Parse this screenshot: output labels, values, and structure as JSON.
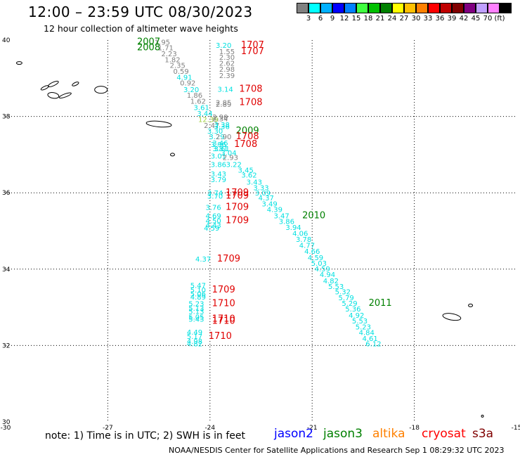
{
  "header": {
    "title": "12:00 – 23:59 UTC 08/30/2023",
    "subtitle": "12 hour collection of altimeter wave heights"
  },
  "legend": {
    "colors": [
      "#808080",
      "#00ffff",
      "#00b0ff",
      "#0000ff",
      "#0080ff",
      "#40ff40",
      "#00c000",
      "#008000",
      "#ffff00",
      "#ffc000",
      "#ff8000",
      "#ff0000",
      "#c00000",
      "#800000",
      "#800080",
      "#c0a0ff",
      "#ff80ff",
      "#000000"
    ],
    "tick_labels": [
      "3",
      "6",
      "9",
      "12",
      "15",
      "18",
      "21",
      "24",
      "27",
      "30",
      "33",
      "36",
      "39",
      "42",
      "45",
      "70",
      "(ft)"
    ]
  },
  "axes": {
    "lon_labels": [
      "-30",
      "-27",
      "-24",
      "-21",
      "-18",
      "-15"
    ],
    "lat_labels": [
      "40",
      "38",
      "36",
      "34",
      "32",
      "30"
    ],
    "lon_range": [
      -30,
      -15
    ],
    "lat_range": [
      30,
      40
    ]
  },
  "colors": {
    "jason2": "#0000ff",
    "jason3": "#008000",
    "altika": "#ff8000",
    "cryosat": "#ff0000",
    "s3a": "#800000",
    "gray": "#808080",
    "cyan": "#00e0e0",
    "green": "#008000",
    "red": "#e00000",
    "yellowgreen": "#a0d040"
  },
  "observations": [
    {
      "v": "1.95",
      "lon": -25.4,
      "lat": 39.88,
      "c": "gray"
    },
    {
      "v": "1.71",
      "lon": -25.3,
      "lat": 39.73,
      "c": "gray"
    },
    {
      "v": "2.23",
      "lon": -25.2,
      "lat": 39.58,
      "c": "gray"
    },
    {
      "v": "1.82",
      "lon": -25.1,
      "lat": 39.42,
      "c": "gray"
    },
    {
      "v": "2.35",
      "lon": -24.95,
      "lat": 39.27,
      "c": "gray"
    },
    {
      "v": "0.59",
      "lon": -24.85,
      "lat": 39.12,
      "c": "gray"
    },
    {
      "v": "4.91",
      "lon": -24.75,
      "lat": 38.96,
      "c": "cyan"
    },
    {
      "v": "0.92",
      "lon": -24.65,
      "lat": 38.81,
      "c": "gray"
    },
    {
      "v": "3.20",
      "lon": -24.55,
      "lat": 38.64,
      "c": "cyan"
    },
    {
      "v": "1.86",
      "lon": -24.45,
      "lat": 38.49,
      "c": "gray"
    },
    {
      "v": "1.62",
      "lon": -24.35,
      "lat": 38.33,
      "c": "gray"
    },
    {
      "v": "3.61",
      "lon": -24.25,
      "lat": 38.17,
      "c": "cyan"
    },
    {
      "v": "3.44",
      "lon": -24.15,
      "lat": 38.01,
      "c": "cyan"
    },
    {
      "v": "12.39",
      "lon": -24.05,
      "lat": 37.85,
      "c": "yellowgreen"
    },
    {
      "v": "2.47",
      "lon": -23.95,
      "lat": 37.7,
      "c": "gray"
    },
    {
      "v": "3.30",
      "lon": -23.85,
      "lat": 37.55,
      "c": "cyan"
    },
    {
      "v": "3.29",
      "lon": -23.8,
      "lat": 37.4,
      "c": "cyan"
    },
    {
      "v": "3.46",
      "lon": -23.7,
      "lat": 37.24,
      "c": "cyan"
    },
    {
      "v": "3.61",
      "lon": -23.65,
      "lat": 37.09,
      "c": "cyan"
    },
    {
      "v": "3.04",
      "lon": -23.45,
      "lat": 36.98,
      "c": "cyan"
    },
    {
      "v": "3.01",
      "lon": -23.75,
      "lat": 36.9,
      "c": "cyan"
    },
    {
      "v": "2.93",
      "lon": -23.4,
      "lat": 36.86,
      "c": "gray"
    },
    {
      "v": "3.86",
      "lon": -23.75,
      "lat": 36.68,
      "c": "cyan"
    },
    {
      "v": "3.22",
      "lon": -23.3,
      "lat": 36.68,
      "c": "cyan"
    },
    {
      "v": "3.45",
      "lon": -22.95,
      "lat": 36.53,
      "c": "cyan"
    },
    {
      "v": "3.43",
      "lon": -23.75,
      "lat": 36.43,
      "c": "cyan"
    },
    {
      "v": "3.62",
      "lon": -22.85,
      "lat": 36.4,
      "c": "cyan"
    },
    {
      "v": "3.79",
      "lon": -23.75,
      "lat": 36.28,
      "c": "cyan"
    },
    {
      "v": "3.43",
      "lon": -22.7,
      "lat": 36.22,
      "c": "cyan"
    },
    {
      "v": "3.33",
      "lon": -22.5,
      "lat": 36.07,
      "c": "cyan"
    },
    {
      "v": "3.74",
      "lon": -23.85,
      "lat": 35.93,
      "c": "cyan"
    },
    {
      "v": "3.09",
      "lon": -22.45,
      "lat": 35.93,
      "c": "cyan"
    },
    {
      "v": "3.70",
      "lon": -23.85,
      "lat": 35.85,
      "c": "cyan"
    },
    {
      "v": "4.37",
      "lon": -22.35,
      "lat": 35.8,
      "c": "cyan"
    },
    {
      "v": "3.49",
      "lon": -22.25,
      "lat": 35.64,
      "c": "cyan"
    },
    {
      "v": "3.76",
      "lon": -23.9,
      "lat": 35.55,
      "c": "cyan"
    },
    {
      "v": "4.39",
      "lon": -22.1,
      "lat": 35.5,
      "c": "cyan"
    },
    {
      "v": "3.47",
      "lon": -21.9,
      "lat": 35.33,
      "c": "cyan"
    },
    {
      "v": "4.69",
      "lon": -23.9,
      "lat": 35.33,
      "c": "cyan"
    },
    {
      "v": "4.50",
      "lon": -23.9,
      "lat": 35.2,
      "c": "cyan"
    },
    {
      "v": "3.86",
      "lon": -21.75,
      "lat": 35.18,
      "c": "cyan"
    },
    {
      "v": "4.43",
      "lon": -23.9,
      "lat": 35.08,
      "c": "cyan"
    },
    {
      "v": "4.59",
      "lon": -23.95,
      "lat": 35.01,
      "c": "cyan"
    },
    {
      "v": "3.94",
      "lon": -21.55,
      "lat": 35.03,
      "c": "cyan"
    },
    {
      "v": "4.06",
      "lon": -21.35,
      "lat": 34.87,
      "c": "cyan"
    },
    {
      "v": "3.78",
      "lon": -21.25,
      "lat": 34.71,
      "c": "cyan"
    },
    {
      "v": "4.77",
      "lon": -21.15,
      "lat": 34.56,
      "c": "cyan"
    },
    {
      "v": "4.37",
      "lon": -24.2,
      "lat": 34.2,
      "c": "cyan"
    },
    {
      "v": "4.66",
      "lon": -21.0,
      "lat": 34.4,
      "c": "cyan"
    },
    {
      "v": "4.59",
      "lon": -20.9,
      "lat": 34.24,
      "c": "cyan"
    },
    {
      "v": "5.03",
      "lon": -20.8,
      "lat": 34.09,
      "c": "cyan"
    },
    {
      "v": "4.59",
      "lon": -20.7,
      "lat": 33.94,
      "c": "cyan"
    },
    {
      "v": "4.94",
      "lon": -20.55,
      "lat": 33.79,
      "c": "cyan"
    },
    {
      "v": "4.82",
      "lon": -20.45,
      "lat": 33.63,
      "c": "cyan"
    },
    {
      "v": "5.53",
      "lon": -20.3,
      "lat": 33.48,
      "c": "cyan"
    },
    {
      "v": "5.47",
      "lon": -24.35,
      "lat": 33.51,
      "c": "cyan"
    },
    {
      "v": "5.10",
      "lon": -24.35,
      "lat": 33.39,
      "c": "cyan"
    },
    {
      "v": "5.32",
      "lon": -20.1,
      "lat": 33.34,
      "c": "cyan"
    },
    {
      "v": "5.06",
      "lon": -24.35,
      "lat": 33.29,
      "c": "cyan"
    },
    {
      "v": "4.89",
      "lon": -24.35,
      "lat": 33.2,
      "c": "cyan"
    },
    {
      "v": "5.79",
      "lon": -20.0,
      "lat": 33.19,
      "c": "cyan"
    },
    {
      "v": "5.23",
      "lon": -24.4,
      "lat": 33.03,
      "c": "cyan"
    },
    {
      "v": "5.29",
      "lon": -19.9,
      "lat": 33.04,
      "c": "cyan"
    },
    {
      "v": "5.13",
      "lon": -24.4,
      "lat": 32.91,
      "c": "cyan"
    },
    {
      "v": "5.36",
      "lon": -19.8,
      "lat": 32.89,
      "c": "cyan"
    },
    {
      "v": "5.13",
      "lon": -24.4,
      "lat": 32.83,
      "c": "cyan"
    },
    {
      "v": "4.92",
      "lon": -19.7,
      "lat": 32.73,
      "c": "cyan"
    },
    {
      "v": "5.05",
      "lon": -24.4,
      "lat": 32.68,
      "c": "cyan"
    },
    {
      "v": "5.43",
      "lon": -24.4,
      "lat": 32.62,
      "c": "cyan"
    },
    {
      "v": "5.53",
      "lon": -19.6,
      "lat": 32.58,
      "c": "cyan"
    },
    {
      "v": "5.23",
      "lon": -19.5,
      "lat": 32.42,
      "c": "cyan"
    },
    {
      "v": "4.49",
      "lon": -24.45,
      "lat": 32.28,
      "c": "cyan"
    },
    {
      "v": "4.84",
      "lon": -19.4,
      "lat": 32.27,
      "c": "cyan"
    },
    {
      "v": "5.17",
      "lon": -24.45,
      "lat": 32.17,
      "c": "cyan"
    },
    {
      "v": "4.61",
      "lon": -19.3,
      "lat": 32.12,
      "c": "cyan"
    },
    {
      "v": "4.98",
      "lon": -24.45,
      "lat": 32.04,
      "c": "cyan"
    },
    {
      "v": "4.82",
      "lon": -24.45,
      "lat": 31.98,
      "c": "cyan"
    },
    {
      "v": "6.12",
      "lon": -19.2,
      "lat": 31.98,
      "c": "cyan"
    },
    {
      "v": "3.20",
      "lon": -23.6,
      "lat": 39.8,
      "c": "cyan"
    },
    {
      "v": "1.55",
      "lon": -23.5,
      "lat": 39.63,
      "c": "gray"
    },
    {
      "v": "2.30",
      "lon": -23.5,
      "lat": 39.48,
      "c": "gray"
    },
    {
      "v": "2.62",
      "lon": -23.5,
      "lat": 39.33,
      "c": "gray"
    },
    {
      "v": "2.98",
      "lon": -23.5,
      "lat": 39.17,
      "c": "gray"
    },
    {
      "v": "2.39",
      "lon": -23.5,
      "lat": 39.01,
      "c": "gray"
    },
    {
      "v": "3.14",
      "lon": -23.55,
      "lat": 38.65,
      "c": "cyan"
    },
    {
      "v": "2.85",
      "lon": -23.6,
      "lat": 38.3,
      "c": "gray"
    },
    {
      "v": "2.89",
      "lon": -23.6,
      "lat": 38.25,
      "c": "gray"
    },
    {
      "v": "2.90",
      "lon": -23.7,
      "lat": 37.92,
      "c": "gray"
    },
    {
      "v": "2.34",
      "lon": -23.7,
      "lat": 37.87,
      "c": "gray"
    },
    {
      "v": "3.38",
      "lon": -23.65,
      "lat": 37.72,
      "c": "cyan"
    },
    {
      "v": "3.36",
      "lon": -23.65,
      "lat": 37.67,
      "c": "cyan"
    },
    {
      "v": "2.90",
      "lon": -23.6,
      "lat": 37.4,
      "c": "gray"
    },
    {
      "v": "3.96",
      "lon": -23.75,
      "lat": 37.2,
      "c": "cyan"
    },
    {
      "v": "3.81",
      "lon": -23.7,
      "lat": 37.09,
      "c": "cyan"
    }
  ],
  "labels": [
    {
      "t": "2007",
      "lon": -25.8,
      "lat": 39.88,
      "c": "green"
    },
    {
      "t": "2008",
      "lon": -25.8,
      "lat": 39.73,
      "c": "green"
    },
    {
      "t": "2009",
      "lon": -22.9,
      "lat": 37.55,
      "c": "green"
    },
    {
      "t": "2010",
      "lon": -20.95,
      "lat": 35.33,
      "c": "green"
    },
    {
      "t": "2011",
      "lon": -19.0,
      "lat": 33.04,
      "c": "green"
    },
    {
      "t": "1707",
      "lon": -22.75,
      "lat": 39.8,
      "c": "red"
    },
    {
      "t": "1707",
      "lon": -22.75,
      "lat": 39.63,
      "c": "red"
    },
    {
      "t": "1708",
      "lon": -22.8,
      "lat": 38.65,
      "c": "red"
    },
    {
      "t": "1708",
      "lon": -22.8,
      "lat": 38.3,
      "c": "red"
    },
    {
      "t": "1708",
      "lon": -22.9,
      "lat": 37.4,
      "c": "red"
    },
    {
      "t": "1708",
      "lon": -22.95,
      "lat": 37.2,
      "c": "red"
    },
    {
      "t": "1709",
      "lon": -23.2,
      "lat": 35.93,
      "c": "red"
    },
    {
      "t": "1709",
      "lon": -23.2,
      "lat": 35.85,
      "c": "red"
    },
    {
      "t": "1709",
      "lon": -23.2,
      "lat": 35.55,
      "c": "red"
    },
    {
      "t": "1709",
      "lon": -23.2,
      "lat": 35.2,
      "c": "red"
    },
    {
      "t": "1709",
      "lon": -23.45,
      "lat": 34.2,
      "c": "red"
    },
    {
      "t": "1709",
      "lon": -23.6,
      "lat": 33.39,
      "c": "red"
    },
    {
      "t": "1710",
      "lon": -23.6,
      "lat": 33.03,
      "c": "red"
    },
    {
      "t": "1710",
      "lon": -23.6,
      "lat": 32.62,
      "c": "red"
    },
    {
      "t": "1710",
      "lon": -23.6,
      "lat": 32.57,
      "c": "red"
    },
    {
      "t": "1710",
      "lon": -23.7,
      "lat": 32.17,
      "c": "red"
    }
  ],
  "footer": {
    "note": "note:  1) Time is in UTC; 2) SWH is in feet",
    "satellites": [
      {
        "name": "jason2",
        "color": "#0000ff"
      },
      {
        "name": "jason3",
        "color": "#008000"
      },
      {
        "name": "altika",
        "color": "#ff8000"
      },
      {
        "name": "cryosat",
        "color": "#ff0000"
      },
      {
        "name": "s3a",
        "color": "#800000"
      }
    ],
    "credit": "NOAA/NESDIS Center for Satellite Applications and Research    Sep  1 08:29:32 UTC 2023"
  }
}
